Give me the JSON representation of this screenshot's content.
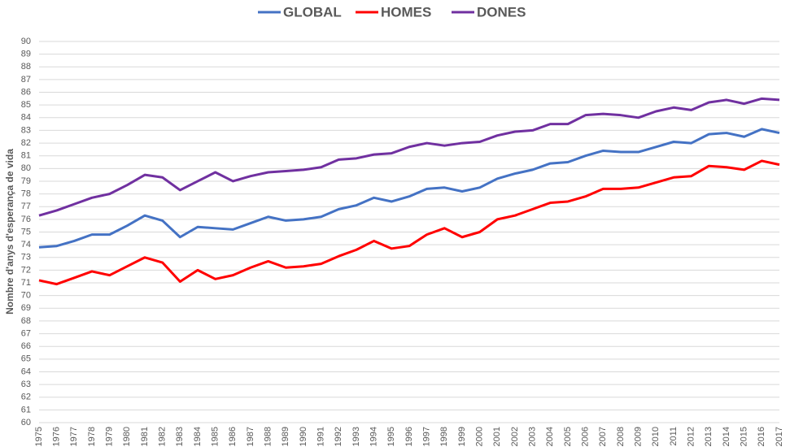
{
  "chart_data": {
    "type": "line",
    "y_label": "Nombre d'anys d'esperança de vida",
    "categories": [
      "1975",
      "1976",
      "1977",
      "1978",
      "1979",
      "1980",
      "1981",
      "1982",
      "1983",
      "1984",
      "1985",
      "1986",
      "1987",
      "1988",
      "1989",
      "1990",
      "1991",
      "1992",
      "1993",
      "1994",
      "1995",
      "1996",
      "1997",
      "1998",
      "1999",
      "2000",
      "2001",
      "2002",
      "2003",
      "2004",
      "2005",
      "2006",
      "2007",
      "2008",
      "2009",
      "2010",
      "2011",
      "2012",
      "2013",
      "2014",
      "2015",
      "2016",
      "2017"
    ],
    "series": [
      {
        "name": "GLOBAL",
        "color": "#4472c4",
        "values": [
          73.8,
          73.9,
          74.3,
          74.8,
          74.8,
          75.5,
          76.3,
          75.9,
          74.6,
          75.4,
          75.3,
          75.2,
          75.7,
          76.2,
          75.9,
          76.0,
          76.2,
          76.8,
          77.1,
          77.7,
          77.4,
          77.8,
          78.4,
          78.5,
          78.2,
          78.5,
          79.2,
          79.6,
          79.9,
          80.4,
          80.5,
          81.0,
          81.4,
          81.3,
          81.3,
          81.7,
          82.1,
          82.0,
          82.7,
          82.8,
          82.5,
          83.1,
          82.8
        ]
      },
      {
        "name": "HOMES",
        "color": "#ff0000",
        "values": [
          71.2,
          70.9,
          71.4,
          71.9,
          71.6,
          72.3,
          73.0,
          72.6,
          71.1,
          72.0,
          71.3,
          71.6,
          72.2,
          72.7,
          72.2,
          72.3,
          72.5,
          73.1,
          73.6,
          74.3,
          73.7,
          73.9,
          74.8,
          75.3,
          74.6,
          75.0,
          76.0,
          76.3,
          76.8,
          77.3,
          77.4,
          77.8,
          78.4,
          78.4,
          78.5,
          78.9,
          79.3,
          79.4,
          80.2,
          80.1,
          79.9,
          80.6,
          80.3
        ]
      },
      {
        "name": "DONES",
        "color": "#7030a0",
        "values": [
          76.3,
          76.7,
          77.2,
          77.7,
          78.0,
          78.7,
          79.5,
          79.3,
          78.3,
          79.0,
          79.7,
          79.0,
          79.4,
          79.7,
          79.8,
          79.9,
          80.1,
          80.7,
          80.8,
          81.1,
          81.2,
          81.7,
          82.0,
          81.8,
          82.0,
          82.1,
          82.6,
          82.9,
          83.0,
          83.5,
          83.5,
          84.2,
          84.3,
          84.2,
          84.0,
          84.5,
          84.8,
          84.6,
          85.2,
          85.4,
          85.1,
          85.5,
          85.4
        ]
      }
    ],
    "ylim": [
      60,
      90
    ],
    "yticks": [
      60,
      61,
      62,
      63,
      64,
      65,
      66,
      67,
      68,
      69,
      70,
      71,
      72,
      73,
      74,
      75,
      76,
      77,
      78,
      79,
      80,
      81,
      82,
      83,
      84,
      85,
      86,
      87,
      88,
      89,
      90
    ],
    "grid": true,
    "legend": "top"
  }
}
